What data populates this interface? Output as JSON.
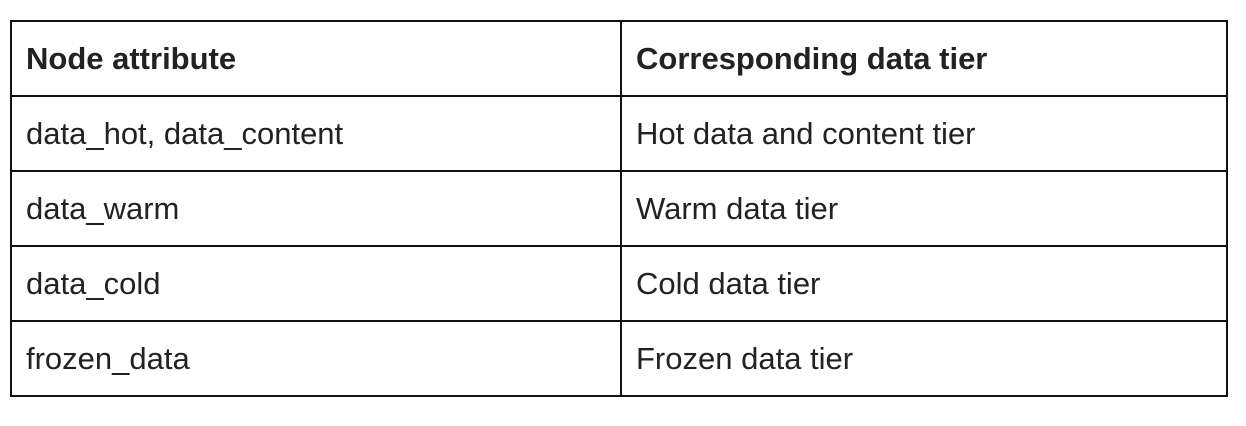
{
  "table": {
    "headers": [
      "Node attribute",
      "Corresponding data tier"
    ],
    "rows": [
      [
        "data_hot, data_content",
        "Hot data and content tier"
      ],
      [
        "data_warm",
        "Warm data tier"
      ],
      [
        "data_cold",
        "Cold data tier"
      ],
      [
        "frozen_data",
        "Frozen data tier"
      ]
    ]
  }
}
